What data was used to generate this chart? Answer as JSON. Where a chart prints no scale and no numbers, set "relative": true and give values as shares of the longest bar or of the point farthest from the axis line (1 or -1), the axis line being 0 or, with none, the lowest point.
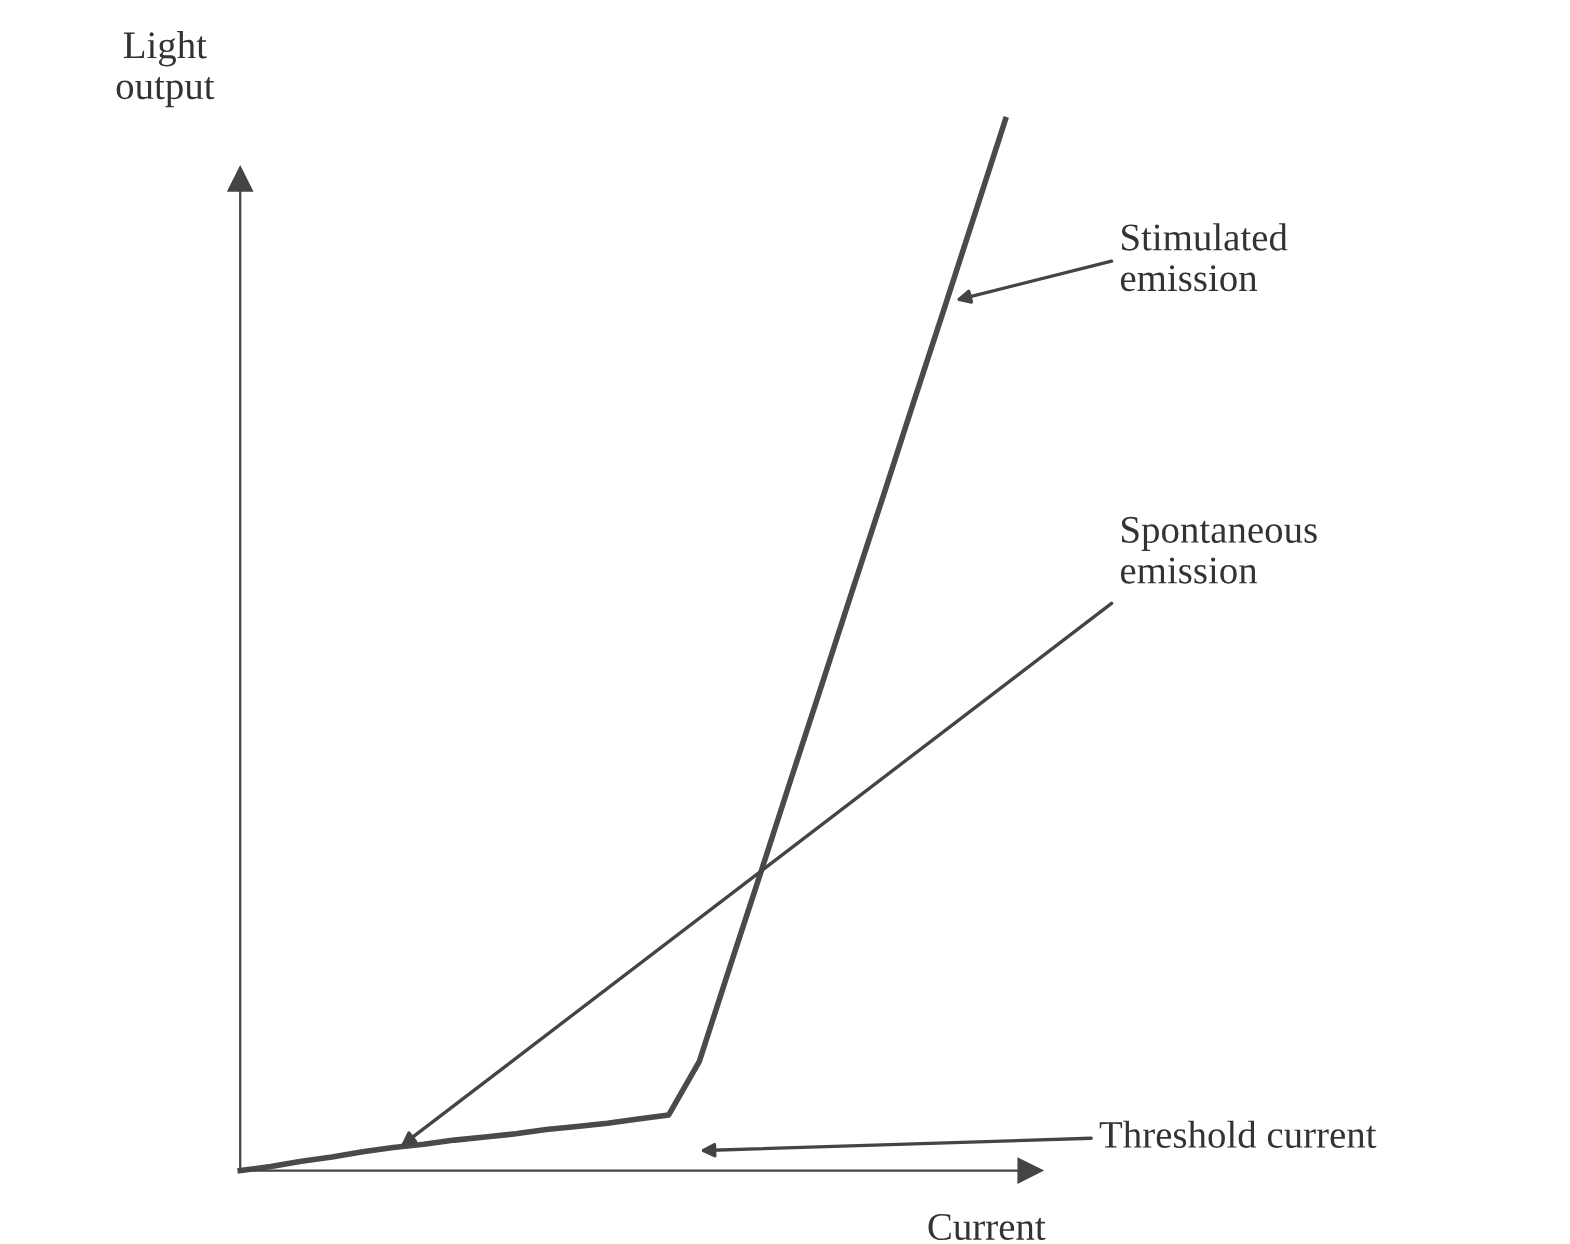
{
  "chart_data": {
    "type": "line",
    "relative": true,
    "xlabel": "Current",
    "ylabel": "Light\noutput",
    "categories": [
      null,
      null,
      null,
      null,
      null,
      null,
      null,
      null,
      null,
      null,
      null,
      null,
      null,
      null,
      null,
      null,
      null,
      null,
      null,
      null,
      null,
      null,
      null,
      null,
      null,
      null
    ],
    "series": [
      {
        "color": "#4a4a4a",
        "values": [
          0,
          0.004,
          0.009,
          0.013,
          0.018,
          0.022,
          0.025,
          0.029,
          0.032,
          0.035,
          0.039,
          0.042,
          0.045,
          0.049,
          0.053,
          0.104,
          0.194,
          0.283,
          0.373,
          0.462,
          0.552,
          0.641,
          0.731,
          0.82,
          0.91,
          1
        ]
      }
    ],
    "annotations": [
      "Stimulated\nemission",
      "Spontaneous\nemission",
      "Threshold current"
    ],
    "grid": false,
    "legend": false,
    "marker": "none",
    "line_style": "solid"
  }
}
